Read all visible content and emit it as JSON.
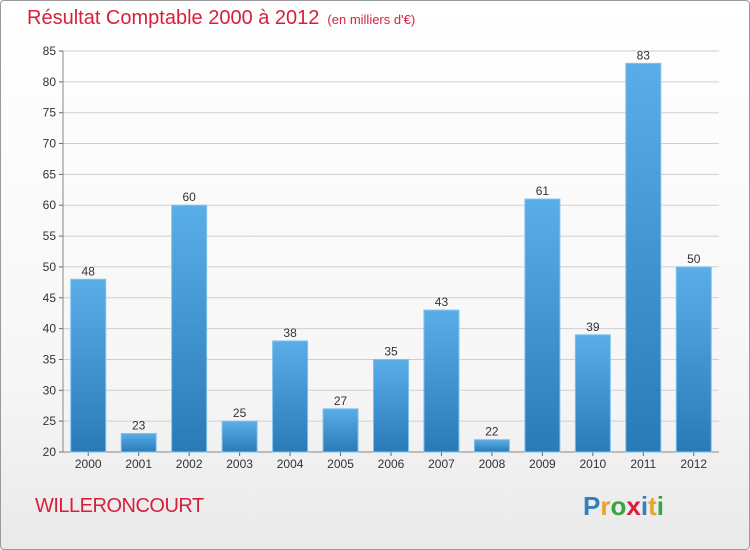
{
  "title": "Résultat Comptable 2000 à 2012",
  "subtitle": "(en milliers d'€)",
  "commune": "WILLERONCOURT",
  "logo": {
    "letters": [
      "P",
      "r",
      "o",
      "x",
      "i",
      "t",
      "i"
    ],
    "colors": [
      "#2f7fc1",
      "#e8a32a",
      "#3aa43d",
      "#d81f3a",
      "#2f7fc1",
      "#e8a32a",
      "#3aa43d"
    ]
  },
  "colors": {
    "bar_light": "#5aaee8",
    "bar_dark": "#2a7ab8",
    "title": "#d81f3a",
    "grid": "#cfcfcf"
  },
  "chart_data": {
    "type": "bar",
    "categories": [
      "2000",
      "2001",
      "2002",
      "2003",
      "2004",
      "2005",
      "2006",
      "2007",
      "2008",
      "2009",
      "2010",
      "2011",
      "2012"
    ],
    "values": [
      48,
      23,
      60,
      25,
      38,
      27,
      35,
      43,
      22,
      61,
      39,
      83,
      50
    ],
    "title": "Résultat Comptable 2000 à 2012",
    "subtitle": "(en milliers d'€)",
    "ylim": [
      20,
      85
    ],
    "yticks": [
      20,
      25,
      30,
      35,
      40,
      45,
      50,
      55,
      60,
      65,
      70,
      75,
      80,
      85
    ],
    "grid": true
  }
}
